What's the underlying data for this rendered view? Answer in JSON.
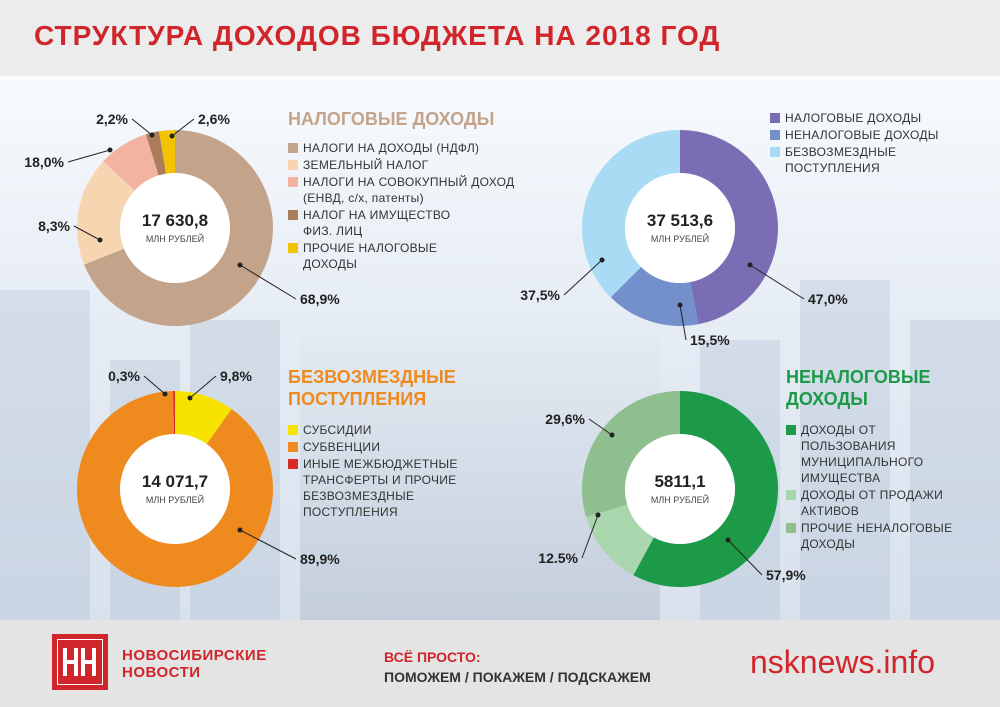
{
  "title": "СТРУКТУРА ДОХОДОВ БЮДЖЕТА НА 2018 ГОД",
  "chart_data": [
    {
      "type": "pie",
      "title": "НАЛОГОВЫЕ ДОХОДЫ",
      "center_value": "17 630,8",
      "center_unit": "МЛН РУБЛЕЙ",
      "slices": [
        {
          "name": "НАЛОГИ НА ДОХОДЫ (НДФЛ)",
          "value": 68.9,
          "label": "68,9%",
          "color": "#c3a48a"
        },
        {
          "name": "ЗЕМЕЛЬНЫЙ НАЛОГ",
          "value": 18.0,
          "label": "18,0%",
          "color": "#f7d5b0"
        },
        {
          "name": "НАЛОГИ НА СОВОКУПНЫЙ ДОХОД (ЕНВД, с/х, патенты)",
          "value": 8.3,
          "label": "8,3%",
          "color": "#f2b4a0"
        },
        {
          "name": "НАЛОГ НА ИМУЩЕСТВО ФИЗ. ЛИЦ",
          "value": 2.2,
          "label": "2,2%",
          "color": "#ac7d5c"
        },
        {
          "name": "ПРОЧИЕ НАЛОГОВЫЕ ДОХОДЫ",
          "value": 2.6,
          "label": "2,6%",
          "color": "#f3c200"
        }
      ]
    },
    {
      "type": "pie",
      "title": "",
      "center_value": "37 513,6",
      "center_unit": "МЛН РУБЛЕЙ",
      "slices": [
        {
          "name": "НАЛОГОВЫЕ ДОХОДЫ",
          "value": 47.0,
          "label": "47,0%",
          "color": "#7b6db4"
        },
        {
          "name": "НЕНАЛОГОВЫЕ ДОХОДЫ",
          "value": 15.5,
          "label": "15,5%",
          "color": "#7390cd"
        },
        {
          "name": "БЕЗВОЗМЕЗДНЫЕ ПОСТУПЛЕНИЯ",
          "value": 37.5,
          "label": "37,5%",
          "color": "#a9dcf4"
        }
      ]
    },
    {
      "type": "pie",
      "title": "БЕЗВОЗМЕЗДНЫЕ ПОСТУПЛЕНИЯ",
      "center_value": "14 071,7",
      "center_unit": "МЛН РУБЛЕЙ",
      "slices": [
        {
          "name": "СУБСИДИИ",
          "value": 9.8,
          "label": "9,8%",
          "color": "#f7e300"
        },
        {
          "name": "СУБВЕНЦИИ",
          "value": 89.9,
          "label": "89,9%",
          "color": "#ee8a1e"
        },
        {
          "name": "ИНЫЕ МЕЖБЮДЖЕТНЫЕ ТРАНСФЕРТЫ И ПРОЧИЕ БЕЗВОЗМЕЗДНЫЕ ПОСТУПЛЕНИЯ",
          "value": 0.3,
          "label": "0,3%",
          "color": "#d92a2a"
        }
      ]
    },
    {
      "type": "pie",
      "title": "НЕНАЛОГОВЫЕ ДОХОДЫ",
      "center_value": "5811,1",
      "center_unit": "МЛН РУБЛЕЙ",
      "slices": [
        {
          "name": "ДОХОДЫ ОТ ПОЛЬЗОВАНИЯ МУНИЦИПАЛЬНОГО ИМУЩЕСТВА",
          "value": 57.9,
          "label": "57,9%",
          "color": "#1d9a48"
        },
        {
          "name": "ДОХОДЫ ОТ ПРОДАЖИ АКТИВОВ",
          "value": 12.5,
          "label": "12.5%",
          "color": "#aad6ad"
        },
        {
          "name": "ПРОЧИЕ НЕНАЛОГОВЫЕ ДОХОДЫ",
          "value": 29.6,
          "label": "29,6%",
          "color": "#8fbf8e"
        }
      ]
    }
  ],
  "legends": [
    {
      "lines": [
        [
          "НАЛОГИ НА ДОХОДЫ (НДФЛ)"
        ],
        [
          "ЗЕМЕЛЬНЫЙ НАЛОГ"
        ],
        [
          "НАЛОГИ НА СОВОКУПНЫЙ ДОХОД",
          "(ЕНВД, с/х, патенты)"
        ],
        [
          "НАЛОГ НА ИМУЩЕСТВО",
          "ФИЗ. ЛИЦ"
        ],
        [
          "ПРОЧИЕ НАЛОГОВЫЕ",
          "ДОХОДЫ"
        ]
      ]
    },
    {
      "lines": [
        [
          "НАЛОГОВЫЕ ДОХОДЫ"
        ],
        [
          "НЕНАЛОГОВЫЕ ДОХОДЫ"
        ],
        [
          "БЕЗВОЗМЕЗДНЫЕ",
          "ПОСТУПЛЕНИЯ"
        ]
      ]
    },
    {
      "lines": [
        [
          "СУБСИДИИ"
        ],
        [
          "СУБВЕНЦИИ"
        ],
        [
          "ИНЫЕ МЕЖБЮДЖЕТНЫЕ",
          "ТРАНСФЕРТЫ И ПРОЧИЕ",
          "БЕЗВОЗМЕЗДНЫЕ",
          "ПОСТУПЛЕНИЯ"
        ]
      ]
    },
    {
      "lines": [
        [
          "ДОХОДЫ ОТ",
          "ПОЛЬЗОВАНИЯ",
          "МУНИЦИПАЛЬНОГО",
          "ИМУЩЕСТВА"
        ],
        [
          "ДОХОДЫ ОТ ПРОДАЖИ",
          "АКТИВОВ"
        ],
        [
          "ПРОЧИЕ НЕНАЛОГОВЫЕ",
          "ДОХОДЫ"
        ]
      ]
    }
  ],
  "section_titles": [
    {
      "lines": [
        "НАЛОГОВЫЕ ДОХОДЫ"
      ],
      "color": "#c3a48a"
    },
    {
      "lines": [
        "БЕЗВОЗМЕЗДНЫЕ",
        "ПОСТУПЛЕНИЯ"
      ],
      "color": "#ee8a1e"
    },
    {
      "lines": [
        "НЕНАЛОГОВЫЕ",
        "ДОХОДЫ"
      ],
      "color": "#1d9a48"
    }
  ],
  "footer": {
    "logo_line1": "НОВОСИБИРСКИЕ",
    "logo_line2": "НОВОСТИ",
    "slogan_line1": "ВСЁ ПРОСТО:",
    "slogan_line2": "ПОМОЖЕМ / ПОКАЖЕМ / ПОДСКАЖЕМ",
    "site": "nsknews.info"
  },
  "colors": {
    "accent": "#d0252b"
  }
}
